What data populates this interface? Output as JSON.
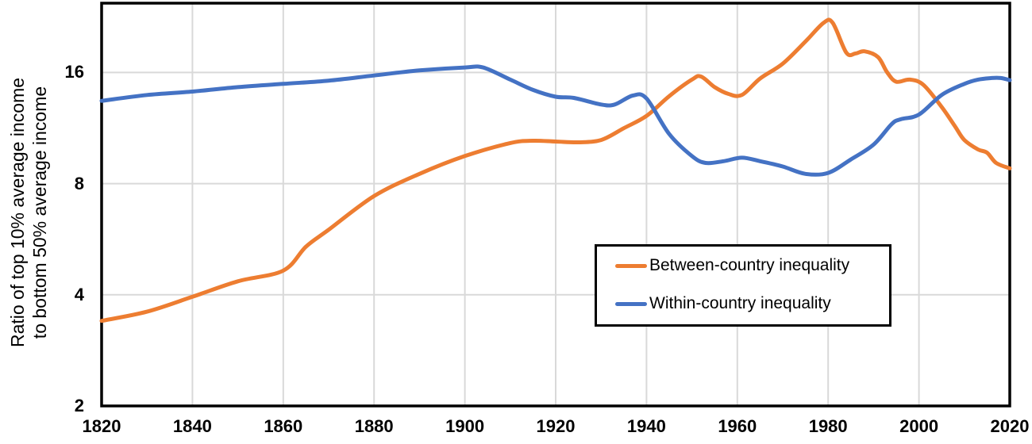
{
  "chart_data": {
    "type": "line",
    "title": "",
    "xlabel": "",
    "ylabel": "Ratio of top 10% average income to bottom 50% average income",
    "ylabel_lines": [
      "Ratio of top 10% average income",
      "to bottom 50% average income"
    ],
    "x_range": [
      1820,
      2020
    ],
    "y_range": [
      2,
      24.64
    ],
    "y_scale": "log2",
    "grid": true,
    "x_ticks": [
      "1820",
      "1840",
      "1860",
      "1880",
      "1900",
      "1920",
      "1940",
      "1960",
      "1980",
      "2000",
      "2020"
    ],
    "x_tick_values": [
      1820,
      1840,
      1860,
      1880,
      1900,
      1920,
      1940,
      1960,
      1980,
      2000,
      2020
    ],
    "y_ticks": [
      "16",
      "8",
      "4",
      "2"
    ],
    "y_tick_values": [
      16,
      8,
      4,
      2
    ],
    "legend_position": "inside-lower-right",
    "series": [
      {
        "name": "Between-country inequality",
        "color": "#ED7D31",
        "points": [
          [
            1820,
            3.4
          ],
          [
            1830,
            3.6
          ],
          [
            1840,
            3.95
          ],
          [
            1850,
            4.35
          ],
          [
            1860,
            4.65
          ],
          [
            1865,
            5.4
          ],
          [
            1870,
            6.0
          ],
          [
            1880,
            7.4
          ],
          [
            1890,
            8.5
          ],
          [
            1900,
            9.5
          ],
          [
            1910,
            10.3
          ],
          [
            1915,
            10.45
          ],
          [
            1920,
            10.4
          ],
          [
            1925,
            10.35
          ],
          [
            1930,
            10.5
          ],
          [
            1935,
            11.3
          ],
          [
            1940,
            12.2
          ],
          [
            1945,
            13.8
          ],
          [
            1950,
            15.3
          ],
          [
            1952,
            15.6
          ],
          [
            1955,
            14.6
          ],
          [
            1958,
            14.0
          ],
          [
            1961,
            13.9
          ],
          [
            1965,
            15.4
          ],
          [
            1970,
            16.9
          ],
          [
            1975,
            19.4
          ],
          [
            1979,
            21.8
          ],
          [
            1981,
            21.8
          ],
          [
            1984,
            18.1
          ],
          [
            1986,
            18.0
          ],
          [
            1988,
            18.25
          ],
          [
            1991,
            17.6
          ],
          [
            1993,
            16.0
          ],
          [
            1995,
            15.1
          ],
          [
            1998,
            15.3
          ],
          [
            2001,
            14.8
          ],
          [
            2005,
            12.9
          ],
          [
            2008,
            11.4
          ],
          [
            2010,
            10.5
          ],
          [
            2013,
            9.9
          ],
          [
            2015,
            9.7
          ],
          [
            2017,
            9.1
          ],
          [
            2020,
            8.8
          ]
        ]
      },
      {
        "name": "Within-country inequality",
        "color": "#4472C4",
        "points": [
          [
            1820,
            13.4
          ],
          [
            1830,
            13.9
          ],
          [
            1840,
            14.2
          ],
          [
            1850,
            14.6
          ],
          [
            1860,
            14.9
          ],
          [
            1870,
            15.2
          ],
          [
            1880,
            15.7
          ],
          [
            1890,
            16.2
          ],
          [
            1900,
            16.5
          ],
          [
            1904,
            16.5
          ],
          [
            1910,
            15.3
          ],
          [
            1915,
            14.35
          ],
          [
            1920,
            13.75
          ],
          [
            1924,
            13.65
          ],
          [
            1930,
            13.1
          ],
          [
            1933,
            13.1
          ],
          [
            1937,
            13.85
          ],
          [
            1940,
            13.6
          ],
          [
            1945,
            10.9
          ],
          [
            1950,
            9.5
          ],
          [
            1953,
            9.1
          ],
          [
            1957,
            9.2
          ],
          [
            1961,
            9.4
          ],
          [
            1965,
            9.2
          ],
          [
            1970,
            8.9
          ],
          [
            1975,
            8.5
          ],
          [
            1980,
            8.55
          ],
          [
            1985,
            9.3
          ],
          [
            1990,
            10.2
          ],
          [
            1994,
            11.6
          ],
          [
            1996,
            11.95
          ],
          [
            2000,
            12.3
          ],
          [
            2005,
            13.9
          ],
          [
            2010,
            14.9
          ],
          [
            2013,
            15.3
          ],
          [
            2016,
            15.45
          ],
          [
            2018,
            15.45
          ],
          [
            2020,
            15.25
          ]
        ]
      }
    ]
  },
  "styles": {
    "background": "#FFFFFF",
    "grid_color": "#D9D9D9",
    "axis_color": "#000000",
    "text_color": "#000000",
    "line_width": 5
  }
}
